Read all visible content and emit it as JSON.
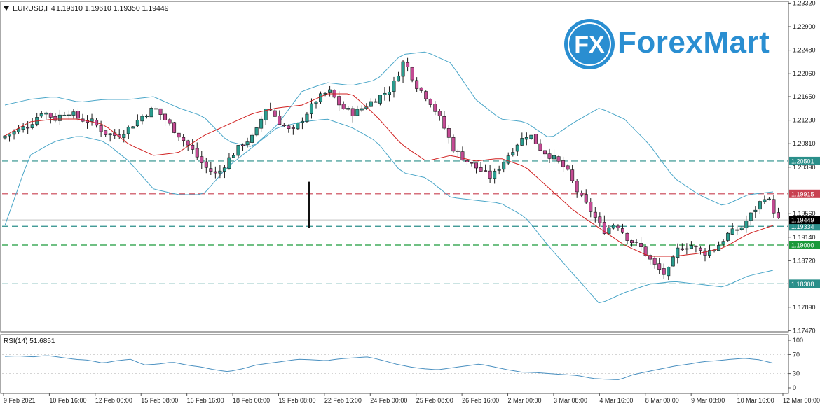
{
  "header": {
    "symbol": "EURUSD,H4",
    "ohlc": "1.19610 1.19610 1.19350 1.19449"
  },
  "logo": {
    "brand": "ForexMart",
    "mark": "FX"
  },
  "colors": {
    "bull_body": "#2a9d8f",
    "bear_body": "#c44b94",
    "candle_outline": "#1a1a1a",
    "bollinger": "#4aa6c8",
    "ma": "#d02020",
    "level_teal": "#2a8f8a",
    "level_green": "#1a9a3a",
    "level_red": "#c84050",
    "rsi_line": "#4a90c0",
    "logo_blue": "#2a8ed1"
  },
  "chart_data": {
    "type": "candlestick",
    "price_axis": {
      "ylim": [
        1.1745,
        1.2335
      ],
      "ticks": [
        "1.23320",
        "1.22900",
        "1.22480",
        "1.22060",
        "1.21650",
        "1.21230",
        "1.20810",
        "1.20390",
        "1.19560",
        "1.19140",
        "1.18720",
        "1.17890",
        "1.17470"
      ]
    },
    "time_axis": {
      "labels": [
        "9 Feb 2021",
        "10 Feb 16:00",
        "12 Feb 00:00",
        "15 Feb 08:00",
        "16 Feb 16:00",
        "18 Feb 00:00",
        "19 Feb 08:00",
        "22 Feb 16:00",
        "24 Feb 00:00",
        "25 Feb 08:00",
        "26 Feb 16:00",
        "2 Mar 00:00",
        "3 Mar 08:00",
        "4 Mar 16:00",
        "8 Mar 00:00",
        "9 Mar 08:00",
        "10 Mar 16:00",
        "12 Mar 00:00"
      ]
    },
    "levels": [
      {
        "price": 1.20501,
        "label": "1.20501",
        "style": "teal"
      },
      {
        "price": 1.19915,
        "label": "1.19915",
        "style": "red"
      },
      {
        "price": 1.19334,
        "label": "1.19334",
        "style": "teal"
      },
      {
        "price": 1.19,
        "label": "1.19000",
        "style": "green"
      },
      {
        "price": 1.18308,
        "label": "1.18308",
        "style": "teal"
      }
    ],
    "current_price": {
      "price": 1.19449,
      "label": "1.19449"
    },
    "close_path": [
      1.2095,
      1.2105,
      1.2115,
      1.214,
      1.2125,
      1.214,
      1.2125,
      1.212,
      1.21,
      1.2095,
      1.211,
      1.213,
      1.2145,
      1.212,
      1.2095,
      1.207,
      1.204,
      1.2025,
      1.2055,
      1.208,
      1.2095,
      1.215,
      1.212,
      1.21,
      1.213,
      1.216,
      1.2175,
      1.2145,
      1.2135,
      1.215,
      1.2165,
      1.218,
      1.223,
      1.2185,
      1.216,
      1.212,
      1.207,
      1.205,
      1.2035,
      1.202,
      1.205,
      1.208,
      1.21,
      1.207,
      1.2055,
      1.2035,
      1.199,
      1.196,
      1.1925,
      1.194,
      1.191,
      1.1895,
      1.1865,
      1.1845,
      1.1895,
      1.19,
      1.1885,
      1.1895,
      1.192,
      1.193,
      1.196,
      1.199,
      1.1945
    ],
    "bollinger_upper_path": [
      1.215,
      1.216,
      1.2165,
      1.2155,
      1.216,
      1.216,
      1.2165,
      1.2145,
      1.213,
      1.2085,
      1.2075,
      1.2115,
      1.2175,
      1.219,
      1.2185,
      1.2195,
      1.224,
      1.2245,
      1.2225,
      1.216,
      1.2125,
      1.212,
      1.209,
      1.212,
      1.2145,
      1.2125,
      1.208,
      1.202,
      1.199,
      1.197,
      1.199,
      1.1995
    ],
    "bollinger_middle_path": [
      1.2095,
      1.212,
      1.2125,
      1.2125,
      1.2115,
      1.208,
      1.206,
      1.2065,
      1.2095,
      1.2115,
      1.2135,
      1.2145,
      1.215,
      1.217,
      1.217,
      1.213,
      1.208,
      1.205,
      1.206,
      1.205,
      1.2055,
      1.204,
      1.2,
      1.196,
      1.193,
      1.19,
      1.188,
      1.188,
      1.1885,
      1.1895,
      1.192,
      1.1935
    ],
    "bollinger_lower_path": [
      1.1935,
      1.206,
      1.2085,
      1.2095,
      1.2085,
      1.205,
      1.2,
      1.199,
      1.199,
      1.204,
      1.2075,
      1.211,
      1.212,
      1.2125,
      1.211,
      1.2085,
      1.203,
      1.202,
      1.1985,
      1.198,
      1.1975,
      1.195,
      1.1895,
      1.1845,
      1.1795,
      1.1815,
      1.183,
      1.1835,
      1.183,
      1.1825,
      1.1845,
      1.1855
    ],
    "spike": {
      "high": 1.2013,
      "low": 1.193,
      "index": 33
    },
    "rsi": {
      "label": "RSI(14) 51.6851",
      "ylim": [
        0,
        100
      ],
      "ticks": [
        "100",
        "70",
        "30",
        "0"
      ],
      "values": [
        66,
        67,
        65,
        68,
        64,
        60,
        58,
        52,
        57,
        60,
        48,
        50,
        54,
        48,
        44,
        38,
        34,
        40,
        48,
        52,
        56,
        60,
        59,
        57,
        61,
        63,
        65,
        58,
        50,
        44,
        40,
        38,
        42,
        46,
        50,
        44,
        38,
        33,
        32,
        30,
        28,
        26,
        20,
        18,
        17,
        28,
        34,
        40,
        46,
        50,
        55,
        57,
        60,
        62,
        59,
        52
      ]
    }
  }
}
